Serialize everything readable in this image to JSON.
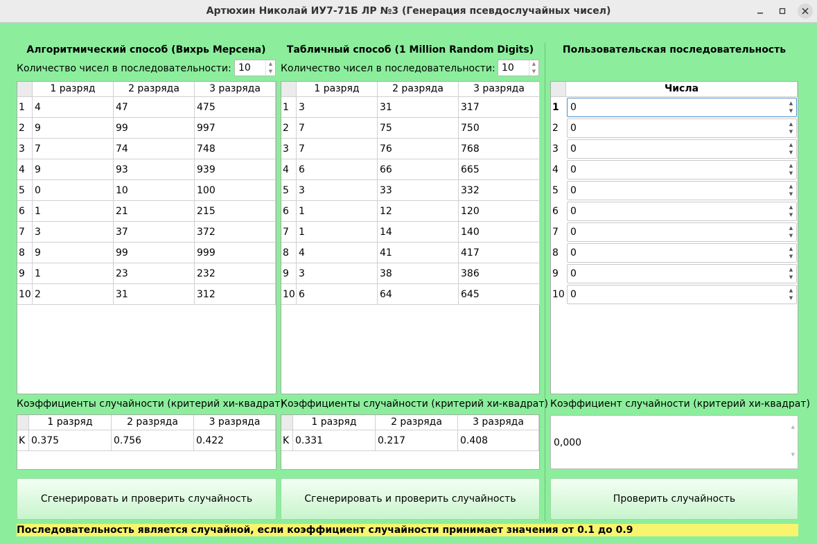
{
  "window": {
    "title": "Артюхин Николай ИУ7-71Б ЛР №3 (Генерация псевдослучайных чисел)",
    "controls": [
      "minimize-icon",
      "maximize-icon",
      "close-icon"
    ]
  },
  "algo": {
    "heading": "Алгоритмический способ (Вихрь Мерсена)",
    "count_label": "Количество чисел в последовательности:",
    "count_value": "10",
    "columns": [
      "1 разряд",
      "2 разряда",
      "3 разряда"
    ],
    "row_labels": [
      "1",
      "2",
      "3",
      "4",
      "5",
      "6",
      "7",
      "8",
      "9",
      "10"
    ],
    "rows": [
      [
        "4",
        "47",
        "475"
      ],
      [
        "9",
        "99",
        "997"
      ],
      [
        "7",
        "74",
        "748"
      ],
      [
        "9",
        "93",
        "939"
      ],
      [
        "0",
        "10",
        "100"
      ],
      [
        "1",
        "21",
        "215"
      ],
      [
        "3",
        "37",
        "372"
      ],
      [
        "9",
        "99",
        "999"
      ],
      [
        "1",
        "23",
        "232"
      ],
      [
        "2",
        "31",
        "312"
      ]
    ],
    "coef_label": "Коэффициенты случайности (критерий хи-квадрат)",
    "coef_row_label": "K",
    "coef_values": [
      "0.375",
      "0.756",
      "0.422"
    ],
    "button_label": "Сгенерировать и проверить случайность"
  },
  "table": {
    "heading": "Табличный способ (1 Million Random Digits)",
    "count_label": "Количество чисел в последовательности:",
    "count_value": "10",
    "columns": [
      "1 разряд",
      "2 разряда",
      "3 разряда"
    ],
    "row_labels": [
      "1",
      "2",
      "3",
      "4",
      "5",
      "6",
      "7",
      "8",
      "9",
      "10"
    ],
    "rows": [
      [
        "3",
        "31",
        "317"
      ],
      [
        "7",
        "75",
        "750"
      ],
      [
        "7",
        "76",
        "768"
      ],
      [
        "6",
        "66",
        "665"
      ],
      [
        "3",
        "33",
        "332"
      ],
      [
        "1",
        "12",
        "120"
      ],
      [
        "1",
        "14",
        "140"
      ],
      [
        "4",
        "41",
        "417"
      ],
      [
        "3",
        "38",
        "386"
      ],
      [
        "6",
        "64",
        "645"
      ]
    ],
    "coef_label": "Коэффициенты случайности  (критерий хи-квадрат)",
    "coef_row_label": "K",
    "coef_values": [
      "0.331",
      "0.217",
      "0.408"
    ],
    "button_label": "Сгенерировать и проверить случайность"
  },
  "user": {
    "heading": "Пользовательская последовательность",
    "column": "Числа",
    "row_labels": [
      "1",
      "2",
      "3",
      "4",
      "5",
      "6",
      "7",
      "8",
      "9",
      "10"
    ],
    "values": [
      "0",
      "0",
      "0",
      "0",
      "0",
      "0",
      "0",
      "0",
      "0",
      "0"
    ],
    "coef_label": "Коэффициент случайности  (критерий хи-квадрат)",
    "coef_value": "0,000",
    "button_label": "Проверить случайность"
  },
  "note": "Последовательность является случайной, если коэффициент случайности принимает значения от 0.1 до 0.9"
}
